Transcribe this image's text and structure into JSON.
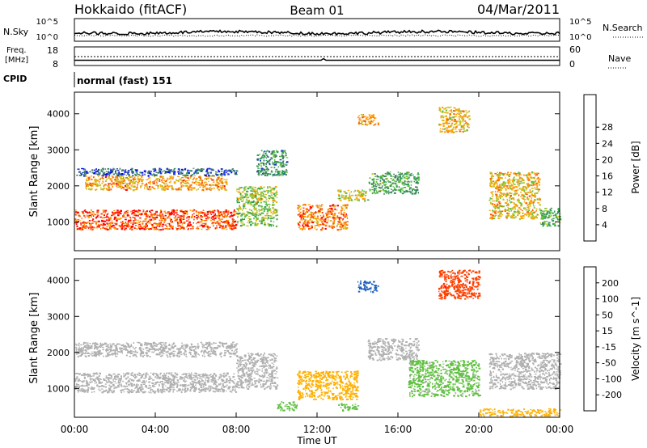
{
  "header": {
    "station": "Hokkaido (fitACF)",
    "beam": "Beam 01",
    "date": "04/Mar/2011"
  },
  "status_panel": {
    "nsky_label": "N.Sky",
    "nsky_ticks": [
      "10^5",
      "10^0"
    ],
    "nsearch_label": "N.Search",
    "nsearch_ticks": [
      "10^5",
      "10^0"
    ],
    "freq_label": "Freq.",
    "freq_unit": "[MHz]",
    "freq_ticks": [
      "18",
      "8"
    ],
    "nave_label": "Nave",
    "nave_ticks": [
      "60",
      "0"
    ],
    "cpid_label": "CPID",
    "cpid_value": "normal (fast) 151"
  },
  "x_axis": {
    "label": "Time UT",
    "ticks": [
      "00:00",
      "04:00",
      "08:00",
      "12:00",
      "16:00",
      "20:00",
      "00:00"
    ]
  },
  "y_ticks": [
    "1000",
    "2000",
    "3000",
    "4000"
  ],
  "colors": {
    "power": [
      "#0000ff",
      "#2040c0",
      "#408060",
      "#30a050",
      "#60c040",
      "#c8c020",
      "#ffa000",
      "#ff6000",
      "#ff0000"
    ],
    "velocity": [
      "#2040b0",
      "#2060c0",
      "#30a050",
      "#60c040",
      "#b0b0b0",
      "#ffb000",
      "#ff8000",
      "#ff4000",
      "#ff0000"
    ]
  },
  "chart_data": [
    {
      "type": "heatmap",
      "title": "",
      "xlabel": "Time UT",
      "ylabel": "Slant Range [km]",
      "xlim": [
        0,
        24
      ],
      "ylim": [
        200,
        4600
      ],
      "colorbar": {
        "label": "Power [dB]",
        "ticks": [
          "4",
          "8",
          "12",
          "16",
          "20",
          "24",
          "28"
        ],
        "range": [
          0,
          30
        ]
      },
      "regions": [
        {
          "t0": 0,
          "t1": 8,
          "r0": 800,
          "r1": 1350,
          "value": 26
        },
        {
          "t0": 0.5,
          "t1": 7.5,
          "r0": 1900,
          "r1": 2300,
          "value": 22
        },
        {
          "t0": 0,
          "t1": 8,
          "r0": 2300,
          "r1": 2500,
          "value": 6
        },
        {
          "t0": 8,
          "t1": 10,
          "r0": 900,
          "r1": 2000,
          "value": 16
        },
        {
          "t0": 9,
          "t1": 10.5,
          "r0": 2300,
          "r1": 3000,
          "value": 10
        },
        {
          "t0": 11,
          "t1": 13.5,
          "r0": 800,
          "r1": 1500,
          "value": 24
        },
        {
          "t0": 13,
          "t1": 14.5,
          "r0": 1600,
          "r1": 1900,
          "value": 18
        },
        {
          "t0": 14.5,
          "t1": 17,
          "r0": 1800,
          "r1": 2400,
          "value": 12
        },
        {
          "t0": 14,
          "t1": 15,
          "r0": 3700,
          "r1": 4000,
          "value": 22
        },
        {
          "t0": 18,
          "t1": 19.5,
          "r0": 3500,
          "r1": 4200,
          "value": 20
        },
        {
          "t0": 20.5,
          "t1": 23,
          "r0": 1100,
          "r1": 2400,
          "value": 20
        },
        {
          "t0": 23,
          "t1": 24,
          "r0": 900,
          "r1": 1400,
          "value": 14
        }
      ]
    },
    {
      "type": "heatmap",
      "title": "",
      "xlabel": "Time UT",
      "ylabel": "Slant Range [km]",
      "xlim": [
        0,
        24
      ],
      "ylim": [
        200,
        4600
      ],
      "colorbar": {
        "label": "Velocity [m s^-1]",
        "ticks": [
          "200",
          "100",
          "50",
          "15",
          "-15",
          "-50",
          "-100",
          "-200"
        ],
        "range": [
          -250,
          250
        ]
      },
      "regions": [
        {
          "t0": 0,
          "t1": 8,
          "r0": 900,
          "r1": 1450,
          "value": 0
        },
        {
          "t0": 0,
          "t1": 8,
          "r0": 1900,
          "r1": 2300,
          "value": 0
        },
        {
          "t0": 8,
          "t1": 10,
          "r0": 1000,
          "r1": 2000,
          "value": 0
        },
        {
          "t0": 11,
          "t1": 14,
          "r0": 700,
          "r1": 1500,
          "value": -60
        },
        {
          "t0": 10,
          "t1": 11,
          "r0": 400,
          "r1": 650,
          "value": 60
        },
        {
          "t0": 13,
          "t1": 14,
          "r0": 400,
          "r1": 600,
          "value": 60
        },
        {
          "t0": 14.5,
          "t1": 17,
          "r0": 1800,
          "r1": 2400,
          "value": 0
        },
        {
          "t0": 14,
          "t1": 15,
          "r0": 3700,
          "r1": 4000,
          "value": 180
        },
        {
          "t0": 18,
          "t1": 20,
          "r0": 3500,
          "r1": 4300,
          "value": -180
        },
        {
          "t0": 16.5,
          "t1": 20,
          "r0": 800,
          "r1": 1800,
          "value": 40
        },
        {
          "t0": 20.5,
          "t1": 24,
          "r0": 1000,
          "r1": 2000,
          "value": 0
        },
        {
          "t0": 20,
          "t1": 24,
          "r0": 250,
          "r1": 450,
          "value": -60
        }
      ]
    }
  ]
}
